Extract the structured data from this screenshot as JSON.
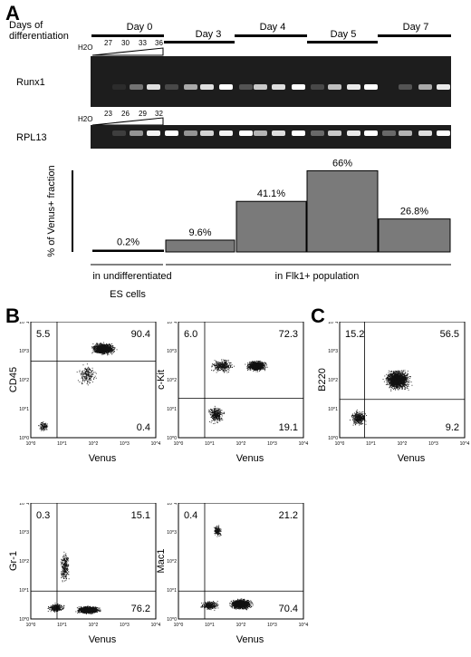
{
  "panels": {
    "a": "A",
    "b": "B",
    "c": "C"
  },
  "header": {
    "days_label_line1": "Days of",
    "days_label_line2": "differentiation"
  },
  "days": [
    "Day 0",
    "Day 3",
    "Day 4",
    "Day 5",
    "Day 7"
  ],
  "gel": {
    "h2o_label": "H2O",
    "runx1": {
      "label": "Runx1",
      "cycles": [
        "27",
        "30",
        "33",
        "36"
      ]
    },
    "rpl13": {
      "label": "RPL13",
      "cycles": [
        "23",
        "26",
        "29",
        "32"
      ]
    }
  },
  "chart_data": [
    {
      "type": "bar",
      "ylabel": "% of Venus+ fraction",
      "categories": [
        "in undifferentiated ES cells",
        "Day 3",
        "Day 4",
        "Day 5",
        "Day 7"
      ],
      "values": [
        0.2,
        9.6,
        41.1,
        66,
        26.8
      ],
      "data_labels": [
        "0.2%",
        "9.6%",
        "41.1%",
        "66%",
        "26.8%"
      ],
      "group_labels": {
        "left_line1": "in undifferentiated",
        "left_line2": "ES cells",
        "right": "in Flk1+ population"
      },
      "ylim": [
        0,
        70
      ]
    },
    {
      "type": "scatter",
      "panel": "B",
      "xlabel": "Venus",
      "ylabel": "CD45",
      "quadrants": {
        "upper_left": "5.5",
        "upper_right": "90.4",
        "lower_right": "0.4"
      },
      "axis": "log",
      "xlim": [
        1,
        10000
      ],
      "ylim": [
        1,
        10000
      ]
    },
    {
      "type": "scatter",
      "panel": "B",
      "xlabel": "Venus",
      "ylabel": "c-Kit",
      "quadrants": {
        "upper_left": "6.0",
        "upper_right": "72.3",
        "lower_right": "19.1"
      },
      "axis": "log",
      "xlim": [
        1,
        10000
      ],
      "ylim": [
        1,
        10000
      ]
    },
    {
      "type": "scatter",
      "panel": "C",
      "xlabel": "Venus",
      "ylabel": "B220",
      "quadrants": {
        "upper_left": "15.2",
        "upper_right": "56.5",
        "lower_right": "9.2"
      },
      "axis": "log",
      "xlim": [
        1,
        10000
      ],
      "ylim": [
        1,
        10000
      ]
    },
    {
      "type": "scatter",
      "panel": "B",
      "xlabel": "Venus",
      "ylabel": "Gr-1",
      "quadrants": {
        "upper_left": "0.3",
        "upper_right": "15.1",
        "lower_right": "76.2"
      },
      "axis": "log",
      "xlim": [
        1,
        10000
      ],
      "ylim": [
        1,
        10000
      ]
    },
    {
      "type": "scatter",
      "panel": "B",
      "xlabel": "Venus",
      "ylabel": "Mac1",
      "quadrants": {
        "upper_left": "0.4",
        "upper_right": "21.2",
        "lower_right": "70.4"
      },
      "axis": "log",
      "xlim": [
        1,
        10000
      ],
      "ylim": [
        1,
        10000
      ]
    }
  ],
  "flow_tick_labels": [
    "10^0",
    "10^1",
    "10^2",
    "10^3",
    "10^4"
  ]
}
